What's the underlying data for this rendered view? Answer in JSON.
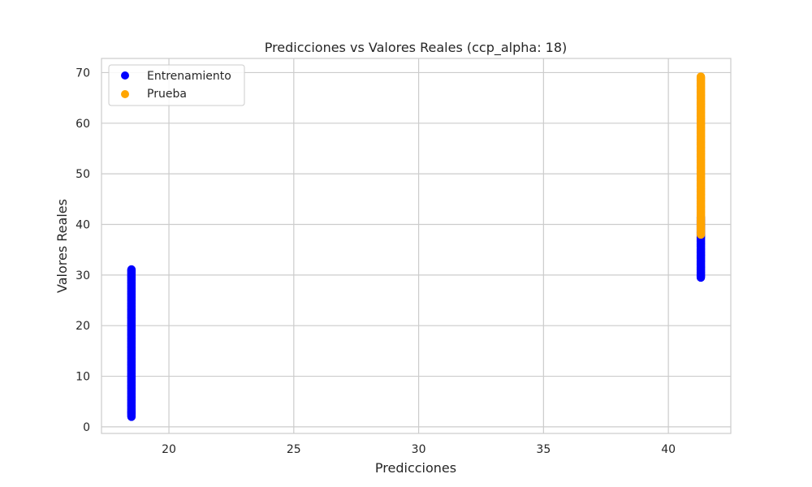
{
  "chart_data": {
    "type": "scatter",
    "title": "Predicciones vs Valores Reales (ccp_alpha: 18)",
    "xlabel": "Predicciones",
    "ylabel": "Valores Reales",
    "xlim": [
      17.3,
      42.5
    ],
    "ylim": [
      -1.3,
      72.8
    ],
    "xticks": [
      20,
      25,
      30,
      35,
      40
    ],
    "yticks": [
      0,
      10,
      20,
      30,
      40,
      50,
      60,
      70
    ],
    "grid": true,
    "legend_position": "top-left",
    "series": [
      {
        "name": "Entrenamiento",
        "color": "#0000ff",
        "groups": [
          {
            "x": 18.5,
            "y_min": 2.0,
            "y_max": 31.2
          },
          {
            "x": 41.3,
            "y_min": 29.5,
            "y_max": 41.5
          }
        ]
      },
      {
        "name": "Prueba",
        "color": "#ffa500",
        "groups": [
          {
            "x": 41.3,
            "y_min": 38.0,
            "y_max": 69.2
          }
        ]
      }
    ]
  }
}
